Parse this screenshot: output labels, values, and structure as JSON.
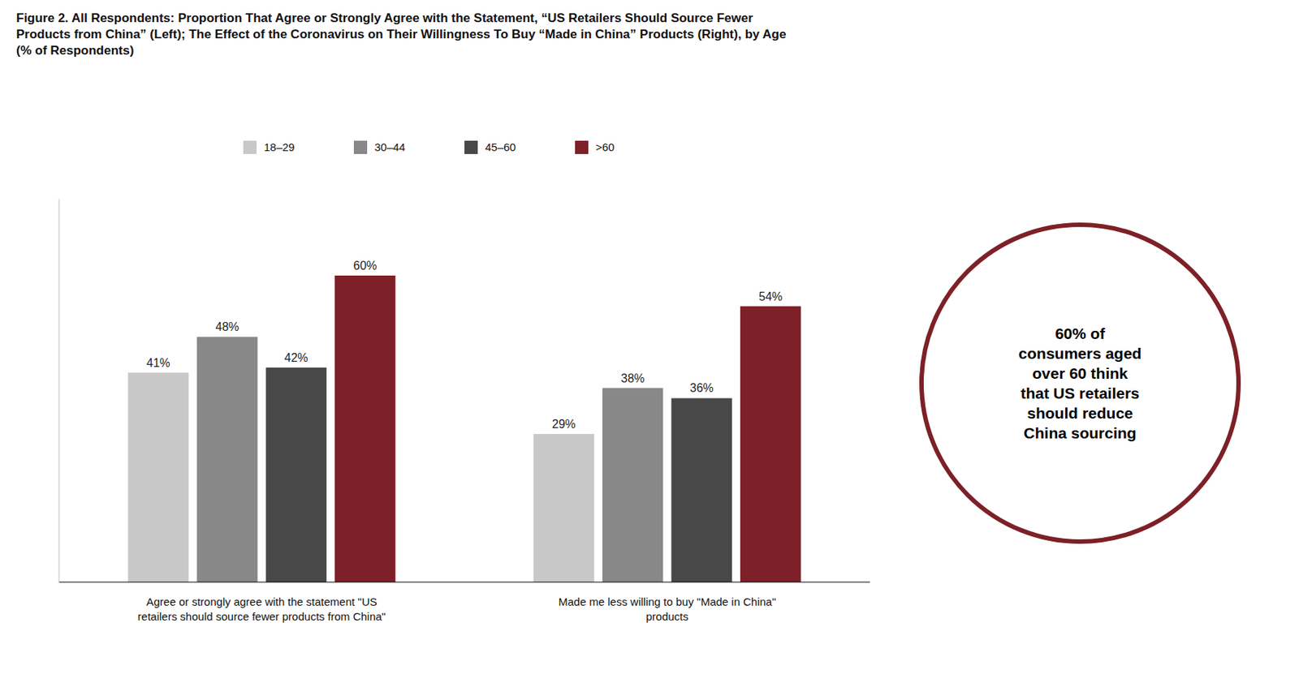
{
  "chart_data": {
    "type": "bar",
    "title": "Figure 2. All Respondents: Proportion That Agree or Strongly Agree with the Statement, “US Retailers Should Source Fewer\nProducts from China” (Left); The Effect of the Coronavirus on Their Willingness To Buy “Made in China” Products (Right), by Age\n(% of Respondents)",
    "categories": [
      "Agree or strongly agree with the statement \"US\nretailers should source fewer products from China\"",
      "Made me less willing to buy \"Made in China\"\nproducts"
    ],
    "series": [
      {
        "name": "18–29",
        "color": "#c8c8c8",
        "values": [
          41,
          29
        ],
        "value_labels": [
          "41%",
          "29%"
        ]
      },
      {
        "name": "30–44",
        "color": "#888888",
        "values": [
          48,
          38
        ],
        "value_labels": [
          "48%",
          "38%"
        ]
      },
      {
        "name": "45–60",
        "color": "#484848",
        "values": [
          42,
          36
        ],
        "value_labels": [
          "42%",
          "36%"
        ]
      },
      {
        "name": ">60",
        "color": "#7d2027",
        "values": [
          60,
          54
        ],
        "value_labels": [
          "60%",
          "54%"
        ]
      }
    ],
    "ylim": [
      0,
      75
    ],
    "tick_labels": false,
    "grid": false,
    "legend": "top",
    "data_labels": true,
    "annotations": [
      {
        "text": "60% of\nconsumers aged\nover 60 think\nthat US retailers\nshould reduce\nChina sourcing",
        "color": "#7d2027"
      }
    ]
  }
}
